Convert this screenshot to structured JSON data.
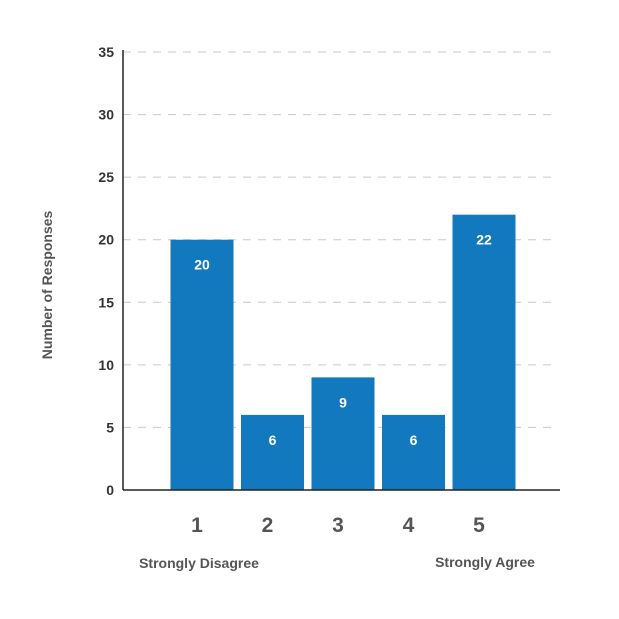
{
  "chart_data": {
    "type": "bar",
    "categories": [
      "1",
      "2",
      "3",
      "4",
      "5"
    ],
    "values": [
      20,
      6,
      9,
      6,
      22
    ],
    "title": "",
    "xlabel": "",
    "ylabel": "Number of Responses",
    "ylim": [
      0,
      35
    ],
    "yticks": [
      0,
      5,
      10,
      15,
      20,
      25,
      30,
      35
    ],
    "grid": true,
    "data_labels": true,
    "scale_anchors": {
      "low": "Strongly Disagree",
      "high": "Strongly Agree"
    },
    "colors": {
      "bar": "#1279BF",
      "grid": "#c9c9c9",
      "axis": "#222222",
      "tick_text": "#333333",
      "label_text": "#555555",
      "data_label": "#ffffff"
    }
  }
}
